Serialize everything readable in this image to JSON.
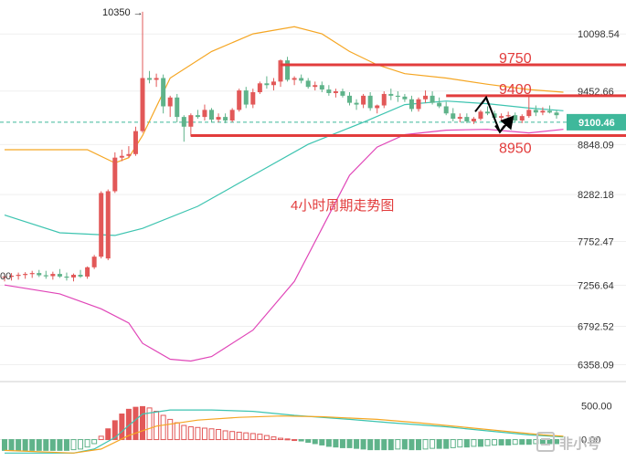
{
  "chart_data": {
    "type": "candlestick",
    "title": "4小时周期走势图",
    "watermark": "非小号",
    "price_axis": {
      "ylim": [
        6250,
        10400
      ],
      "ticks": [
        "10098.54",
        "9452.66",
        "8848.09",
        "8282.18",
        "7752.47",
        "7256.64",
        "6792.52",
        "6358.09"
      ],
      "tick_values": [
        10098.54,
        9452.66,
        8848.09,
        8282.18,
        7752.47,
        7256.64,
        6792.52,
        6358.09
      ],
      "last_price_label": "9100.46",
      "last_price": 9100.46,
      "left_partial_label": "00"
    },
    "high_annotation": {
      "label": "10350 →",
      "index": 20,
      "value": 10350
    },
    "levels": [
      {
        "label": "9750",
        "value": 9750,
        "from": 40,
        "to": 102
      },
      {
        "label": "9400",
        "value": 9400,
        "from": 64,
        "to": 102
      },
      {
        "label": "8950",
        "value": 8950,
        "from": 27,
        "to": 102
      }
    ],
    "candles": [
      [
        7350,
        7390,
        7300,
        7355
      ],
      [
        7355,
        7395,
        7310,
        7365
      ],
      [
        7365,
        7400,
        7320,
        7375
      ],
      [
        7375,
        7405,
        7330,
        7385
      ],
      [
        7385,
        7420,
        7340,
        7395
      ],
      [
        7395,
        7430,
        7350,
        7370
      ],
      [
        7370,
        7420,
        7330,
        7360
      ],
      [
        7360,
        7410,
        7320,
        7385
      ],
      [
        7385,
        7440,
        7340,
        7355
      ],
      [
        7355,
        7400,
        7310,
        7345
      ],
      [
        7345,
        7390,
        7300,
        7375
      ],
      [
        7375,
        7430,
        7340,
        7355
      ],
      [
        7355,
        7470,
        7330,
        7460
      ],
      [
        7460,
        7600,
        7440,
        7580
      ],
      [
        7580,
        8320,
        7560,
        8300
      ],
      [
        7560,
        8340,
        7540,
        8320
      ],
      [
        8320,
        8760,
        8300,
        8700
      ],
      [
        8700,
        8790,
        8660,
        8720
      ],
      [
        8720,
        8830,
        8700,
        8740
      ],
      [
        8740,
        9050,
        8720,
        9000
      ],
      [
        9000,
        10350,
        8980,
        9600
      ],
      [
        9600,
        9680,
        9540,
        9580
      ],
      [
        9580,
        9650,
        9500,
        9600
      ],
      [
        9600,
        9640,
        9200,
        9280
      ],
      [
        9280,
        9400,
        9160,
        9380
      ],
      [
        9380,
        9420,
        9100,
        9160
      ],
      [
        9160,
        9180,
        8880,
        9050
      ],
      [
        9050,
        9200,
        8940,
        9180
      ],
      [
        9180,
        9240,
        9140,
        9160
      ],
      [
        9160,
        9300,
        9120,
        9240
      ],
      [
        9240,
        9260,
        9100,
        9130
      ],
      [
        9130,
        9200,
        9100,
        9160
      ],
      [
        9160,
        9200,
        9090,
        9120
      ],
      [
        9120,
        9260,
        9100,
        9240
      ],
      [
        9240,
        9480,
        9220,
        9460
      ],
      [
        9460,
        9500,
        9260,
        9300
      ],
      [
        9300,
        9480,
        9260,
        9440
      ],
      [
        9440,
        9560,
        9420,
        9540
      ],
      [
        9540,
        9620,
        9480,
        9520
      ],
      [
        9520,
        9600,
        9460,
        9560
      ],
      [
        9560,
        9810,
        9500,
        9800
      ],
      [
        9800,
        9840,
        9560,
        9580
      ],
      [
        9580,
        9620,
        9520,
        9600
      ],
      [
        9600,
        9640,
        9540,
        9570
      ],
      [
        9570,
        9600,
        9480,
        9500
      ],
      [
        9500,
        9560,
        9460,
        9520
      ],
      [
        9520,
        9560,
        9440,
        9470
      ],
      [
        9470,
        9520,
        9400,
        9430
      ],
      [
        9430,
        9480,
        9380,
        9450
      ],
      [
        9450,
        9480,
        9380,
        9400
      ],
      [
        9400,
        9440,
        9290,
        9320
      ],
      [
        9320,
        9360,
        9240,
        9300
      ],
      [
        9300,
        9420,
        9260,
        9400
      ],
      [
        9400,
        9440,
        9230,
        9260
      ],
      [
        9260,
        9300,
        9200,
        9290
      ],
      [
        9290,
        9450,
        9260,
        9420
      ],
      [
        9420,
        9480,
        9350,
        9400
      ],
      [
        9400,
        9450,
        9330,
        9390
      ],
      [
        9390,
        9420,
        9330,
        9360
      ],
      [
        9360,
        9400,
        9220,
        9250
      ],
      [
        9250,
        9380,
        9220,
        9360
      ],
      [
        9360,
        9460,
        9320,
        9400
      ],
      [
        9400,
        9450,
        9300,
        9320
      ],
      [
        9320,
        9380,
        9260,
        9280
      ],
      [
        9280,
        9330,
        9180,
        9200
      ],
      [
        9200,
        9260,
        9110,
        9140
      ],
      [
        9140,
        9200,
        9100,
        9160
      ],
      [
        9160,
        9200,
        9090,
        9110
      ],
      [
        9110,
        9160,
        9080,
        9140
      ],
      [
        9140,
        9240,
        9120,
        9220
      ],
      [
        9220,
        9280,
        9180,
        9200
      ],
      [
        9200,
        9230,
        9120,
        9150
      ],
      [
        9150,
        9200,
        9110,
        9170
      ],
      [
        9170,
        9220,
        9140,
        9180
      ],
      [
        9180,
        9210,
        9100,
        9120
      ],
      [
        9120,
        9190,
        9090,
        9170
      ],
      [
        9170,
        9400,
        9150,
        9240
      ],
      [
        9240,
        9290,
        9170,
        9210
      ],
      [
        9210,
        9270,
        9180,
        9230
      ],
      [
        9230,
        9290,
        9200,
        9210
      ],
      [
        9210,
        9240,
        9140,
        9180
      ]
    ],
    "bollinger": {
      "upper": [
        [
          0,
          8790
        ],
        [
          12,
          8790
        ],
        [
          16,
          8640
        ],
        [
          18,
          8700
        ],
        [
          20,
          8950
        ],
        [
          24,
          9600
        ],
        [
          30,
          9900
        ],
        [
          36,
          10100
        ],
        [
          42,
          10180
        ],
        [
          46,
          10100
        ],
        [
          50,
          9900
        ],
        [
          54,
          9750
        ],
        [
          58,
          9650
        ],
        [
          64,
          9600
        ],
        [
          70,
          9530
        ],
        [
          76,
          9470
        ],
        [
          81,
          9440
        ]
      ],
      "middle": [
        [
          0,
          8050
        ],
        [
          8,
          7850
        ],
        [
          16,
          7820
        ],
        [
          20,
          7900
        ],
        [
          28,
          8150
        ],
        [
          36,
          8500
        ],
        [
          44,
          8850
        ],
        [
          52,
          9100
        ],
        [
          58,
          9300
        ],
        [
          64,
          9340
        ],
        [
          70,
          9310
        ],
        [
          76,
          9260
        ],
        [
          81,
          9230
        ]
      ],
      "lower": [
        [
          0,
          7260
        ],
        [
          8,
          7160
        ],
        [
          14,
          6990
        ],
        [
          18,
          6830
        ],
        [
          20,
          6600
        ],
        [
          24,
          6420
        ],
        [
          27,
          6400
        ],
        [
          30,
          6450
        ],
        [
          36,
          6750
        ],
        [
          42,
          7300
        ],
        [
          46,
          7900
        ],
        [
          50,
          8500
        ],
        [
          54,
          8820
        ],
        [
          58,
          8960
        ],
        [
          64,
          9010
        ],
        [
          70,
          9020
        ],
        [
          76,
          8980
        ],
        [
          81,
          9020
        ]
      ]
    },
    "macd": {
      "ylim": [
        -250,
        780
      ],
      "ticks": [
        "500.00",
        "0.00"
      ],
      "tick_values": [
        500,
        0
      ],
      "hist": [
        -160,
        -160,
        -160,
        -160,
        -160,
        -160,
        -160,
        -160,
        -160,
        -160,
        -150,
        -140,
        -110,
        -60,
        50,
        160,
        280,
        380,
        450,
        480,
        490,
        470,
        420,
        360,
        300,
        250,
        210,
        190,
        180,
        170,
        160,
        150,
        130,
        120,
        110,
        100,
        90,
        80,
        60,
        40,
        20,
        10,
        0,
        -20,
        -40,
        -60,
        -80,
        -100,
        -110,
        -120,
        -120,
        -130,
        -140,
        -150,
        -150,
        -150,
        -150,
        -140,
        -140,
        -150,
        -150,
        -140,
        -130,
        -130,
        -130,
        -120,
        -110,
        -110,
        -100,
        -100,
        -90,
        -80,
        -80,
        -80,
        -70,
        -70,
        -70,
        -60,
        -60,
        -60,
        -60
      ],
      "dif": [
        [
          0,
          -200
        ],
        [
          10,
          -200
        ],
        [
          13,
          -140
        ],
        [
          16,
          30
        ],
        [
          18,
          210
        ],
        [
          20,
          380
        ],
        [
          24,
          440
        ],
        [
          30,
          440
        ],
        [
          36,
          420
        ],
        [
          42,
          360
        ],
        [
          50,
          300
        ],
        [
          56,
          250
        ],
        [
          64,
          190
        ],
        [
          70,
          130
        ],
        [
          76,
          70
        ],
        [
          81,
          40
        ]
      ],
      "dea": [
        [
          0,
          -160
        ],
        [
          10,
          -200
        ],
        [
          14,
          -140
        ],
        [
          18,
          60
        ],
        [
          22,
          200
        ],
        [
          28,
          290
        ],
        [
          34,
          330
        ],
        [
          40,
          350
        ],
        [
          46,
          340
        ],
        [
          54,
          300
        ],
        [
          60,
          250
        ],
        [
          66,
          190
        ],
        [
          72,
          130
        ],
        [
          78,
          70
        ],
        [
          81,
          50
        ]
      ]
    },
    "colors": {
      "up": "#e25858",
      "down": "#5fb38a",
      "upper": "#f5a623",
      "middle": "#3dc4b0",
      "lower": "#e046b8",
      "level": "#e23c3c",
      "dif": "#3dc4b0",
      "dea": "#f5a623"
    }
  }
}
